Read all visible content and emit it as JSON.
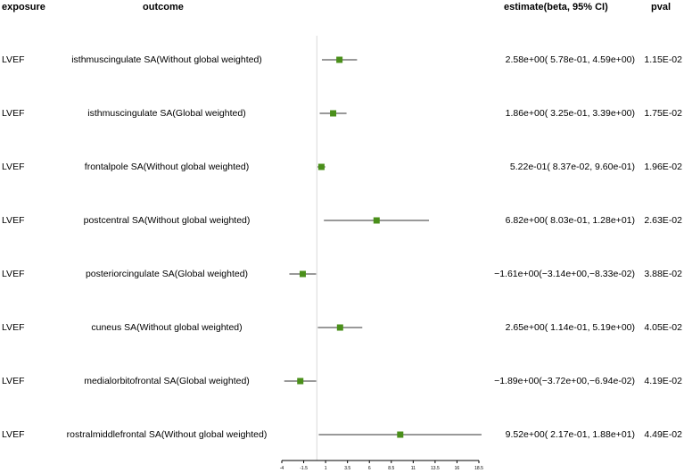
{
  "headers": {
    "exposure": "exposure",
    "outcome": "outcome",
    "estimate": "estimate(beta, 95% CI)",
    "pval": "pval"
  },
  "rows": [
    {
      "exposure": "LVEF",
      "outcome": "isthmuscingulate SA(Without global weighted)",
      "estimate_text": "2.58e+00( 5.78e-01, 4.59e+00)",
      "pval": "1.15E-02"
    },
    {
      "exposure": "LVEF",
      "outcome": "isthmuscingulate SA(Global weighted)",
      "estimate_text": "1.86e+00( 3.25e-01, 3.39e+00)",
      "pval": "1.75E-02"
    },
    {
      "exposure": "LVEF",
      "outcome": "frontalpole SA(Without global weighted)",
      "estimate_text": "5.22e-01( 8.37e-02, 9.60e-01)",
      "pval": "1.96E-02"
    },
    {
      "exposure": "LVEF",
      "outcome": "postcentral SA(Without global weighted)",
      "estimate_text": "6.82e+00( 8.03e-01, 1.28e+01)",
      "pval": "2.63E-02"
    },
    {
      "exposure": "LVEF",
      "outcome": "posteriorcingulate SA(Global weighted)",
      "estimate_text": "−1.61e+00(−3.14e+00,−8.33e-02)",
      "pval": "3.88E-02"
    },
    {
      "exposure": "LVEF",
      "outcome": "cuneus SA(Without global weighted)",
      "estimate_text": "2.65e+00( 1.14e-01, 5.19e+00)",
      "pval": "4.05E-02"
    },
    {
      "exposure": "LVEF",
      "outcome": "medialorbitofrontal SA(Global weighted)",
      "estimate_text": "−1.89e+00(−3.72e+00,−6.94e-02)",
      "pval": "4.19E-02"
    },
    {
      "exposure": "LVEF",
      "outcome": "rostralmiddlefrontal SA(Without global weighted)",
      "estimate_text": "9.52e+00( 2.17e-01, 1.88e+01)",
      "pval": "4.49E-02"
    }
  ],
  "chart_data": {
    "type": "forest",
    "xlim": [
      -4,
      18.5
    ],
    "x_ticks": [
      "-4",
      "-1.5",
      "1",
      "3.5",
      "6",
      "8.5",
      "11",
      "13.5",
      "16",
      "18.5"
    ],
    "reference_line": 0,
    "colors": {
      "marker": "#4a8f1a",
      "ci": "#333333",
      "reference": "#d9d9d9",
      "axis": "#000000"
    },
    "estimates": [
      2.58,
      1.86,
      0.522,
      6.82,
      -1.61,
      2.65,
      -1.89,
      9.52
    ],
    "ci_lower": [
      0.578,
      0.325,
      0.0837,
      0.803,
      -3.14,
      0.114,
      -3.72,
      0.217
    ],
    "ci_upper": [
      4.59,
      3.39,
      0.96,
      12.8,
      -0.0833,
      5.19,
      -0.0694,
      18.8
    ]
  }
}
